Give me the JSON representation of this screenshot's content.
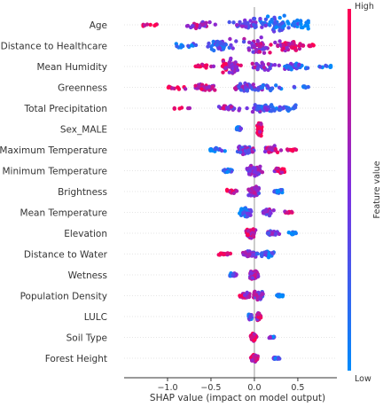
{
  "chart_data": {
    "type": "scatter",
    "subtype": "shap-beeswarm",
    "xlabel": "SHAP value (impact on model output)",
    "xlim": [
      -1.5,
      0.95
    ],
    "xticks": [
      -1.0,
      -0.5,
      0.0,
      0.5
    ],
    "xtick_labels": [
      "−1.0",
      "−0.5",
      "0.0",
      "0.5"
    ],
    "zero_line": true,
    "colorbar": {
      "label": "Feature value",
      "high_label": "High",
      "low_label": "Low",
      "low_color": "#008bfb",
      "high_color": "#ff0052"
    },
    "features": [
      {
        "name": "Age",
        "min": -1.28,
        "max": 0.62,
        "spread": 1.0,
        "high_side": "neg",
        "density": [
          {
            "x": -1.2,
            "w": 0.2
          },
          {
            "x": -0.6,
            "w": 0.5
          },
          {
            "x": -0.1,
            "w": 0.9
          },
          {
            "x": 0.25,
            "w": 1.0
          },
          {
            "x": 0.5,
            "w": 0.6
          }
        ]
      },
      {
        "name": "Distance to Healthcare",
        "min": -0.9,
        "max": 0.68,
        "spread": 1.0,
        "high_side": "pos",
        "density": [
          {
            "x": -0.8,
            "w": 0.3
          },
          {
            "x": -0.4,
            "w": 0.8
          },
          {
            "x": 0.05,
            "w": 1.0
          },
          {
            "x": 0.4,
            "w": 0.8
          },
          {
            "x": 0.62,
            "w": 0.2
          }
        ]
      },
      {
        "name": "Mean Humidity",
        "min": -0.7,
        "max": 0.88,
        "spread": 0.9,
        "high_side": "neg",
        "density": [
          {
            "x": -0.6,
            "w": 0.3
          },
          {
            "x": -0.25,
            "w": 1.0
          },
          {
            "x": 0.1,
            "w": 0.7
          },
          {
            "x": 0.45,
            "w": 0.5
          },
          {
            "x": 0.8,
            "w": 0.2
          }
        ]
      },
      {
        "name": "Greenness",
        "min": -1.0,
        "max": 0.62,
        "spread": 0.6,
        "high_side": "neg",
        "density": [
          {
            "x": -0.9,
            "w": 0.4
          },
          {
            "x": -0.55,
            "w": 0.7
          },
          {
            "x": -0.1,
            "w": 0.8
          },
          {
            "x": 0.15,
            "w": 0.6
          },
          {
            "x": 0.55,
            "w": 0.2
          }
        ]
      },
      {
        "name": "Total Precipitation",
        "min": -0.92,
        "max": 0.6,
        "spread": 0.55,
        "high_side": "neg",
        "density": [
          {
            "x": -0.85,
            "w": 0.2
          },
          {
            "x": -0.3,
            "w": 0.5
          },
          {
            "x": 0.1,
            "w": 0.7
          },
          {
            "x": 0.35,
            "w": 0.5
          }
        ]
      },
      {
        "name": "Sex_MALE",
        "min": -0.22,
        "max": 0.1,
        "spread": 0.7,
        "high_side": "pos",
        "density": [
          {
            "x": -0.18,
            "w": 0.3
          },
          {
            "x": 0.06,
            "w": 1.0
          }
        ]
      },
      {
        "name": "Maximum Temperature",
        "min": -0.55,
        "max": 0.48,
        "spread": 0.6,
        "high_side": "pos",
        "density": [
          {
            "x": -0.45,
            "w": 0.3
          },
          {
            "x": -0.1,
            "w": 0.8
          },
          {
            "x": 0.2,
            "w": 0.7
          },
          {
            "x": 0.42,
            "w": 0.2
          }
        ]
      },
      {
        "name": "Minimum Temperature",
        "min": -0.45,
        "max": 0.45,
        "spread": 0.6,
        "high_side": "pos",
        "density": [
          {
            "x": -0.3,
            "w": 0.3
          },
          {
            "x": 0.0,
            "w": 0.8
          },
          {
            "x": 0.3,
            "w": 0.5
          }
        ]
      },
      {
        "name": "Brightness",
        "min": -0.32,
        "max": 0.35,
        "spread": 0.55,
        "high_side": "neg",
        "density": [
          {
            "x": -0.25,
            "w": 0.4
          },
          {
            "x": 0.0,
            "w": 0.9
          },
          {
            "x": 0.28,
            "w": 0.3
          }
        ]
      },
      {
        "name": "Mean Temperature",
        "min": -0.22,
        "max": 0.46,
        "spread": 0.55,
        "high_side": "pos",
        "density": [
          {
            "x": -0.1,
            "w": 0.8
          },
          {
            "x": 0.15,
            "w": 0.6
          },
          {
            "x": 0.4,
            "w": 0.2
          }
        ]
      },
      {
        "name": "Elevation",
        "min": -0.22,
        "max": 0.52,
        "spread": 0.5,
        "high_side": "neg",
        "density": [
          {
            "x": -0.05,
            "w": 0.9
          },
          {
            "x": 0.2,
            "w": 0.5
          },
          {
            "x": 0.45,
            "w": 0.2
          }
        ]
      },
      {
        "name": "Distance to Water",
        "min": -0.5,
        "max": 0.35,
        "spread": 0.5,
        "high_side": "neg",
        "density": [
          {
            "x": -0.35,
            "w": 0.2
          },
          {
            "x": -0.05,
            "w": 0.6
          },
          {
            "x": 0.15,
            "w": 0.6
          }
        ]
      },
      {
        "name": "Wetness",
        "min": -0.38,
        "max": 0.15,
        "spread": 0.5,
        "high_side": "pos",
        "density": [
          {
            "x": -0.25,
            "w": 0.3
          },
          {
            "x": 0.0,
            "w": 0.9
          }
        ]
      },
      {
        "name": "Population Density",
        "min": -0.28,
        "max": 0.36,
        "spread": 0.55,
        "high_side": "neg",
        "density": [
          {
            "x": -0.1,
            "w": 0.6
          },
          {
            "x": 0.05,
            "w": 0.9
          },
          {
            "x": 0.3,
            "w": 0.2
          }
        ]
      },
      {
        "name": "LULC",
        "min": -0.12,
        "max": 0.1,
        "spread": 0.45,
        "high_side": "pos",
        "density": [
          {
            "x": -0.05,
            "w": 0.6
          },
          {
            "x": 0.05,
            "w": 0.7
          }
        ]
      },
      {
        "name": "Soil Type",
        "min": -0.04,
        "max": 0.32,
        "spread": 0.45,
        "high_side": "neg",
        "density": [
          {
            "x": -0.01,
            "w": 0.8
          },
          {
            "x": 0.2,
            "w": 0.2
          }
        ]
      },
      {
        "name": "Forest Height",
        "min": -0.1,
        "max": 0.36,
        "spread": 0.35,
        "high_side": "neg",
        "density": [
          {
            "x": 0.0,
            "w": 0.8
          },
          {
            "x": 0.25,
            "w": 0.2
          }
        ]
      }
    ]
  }
}
